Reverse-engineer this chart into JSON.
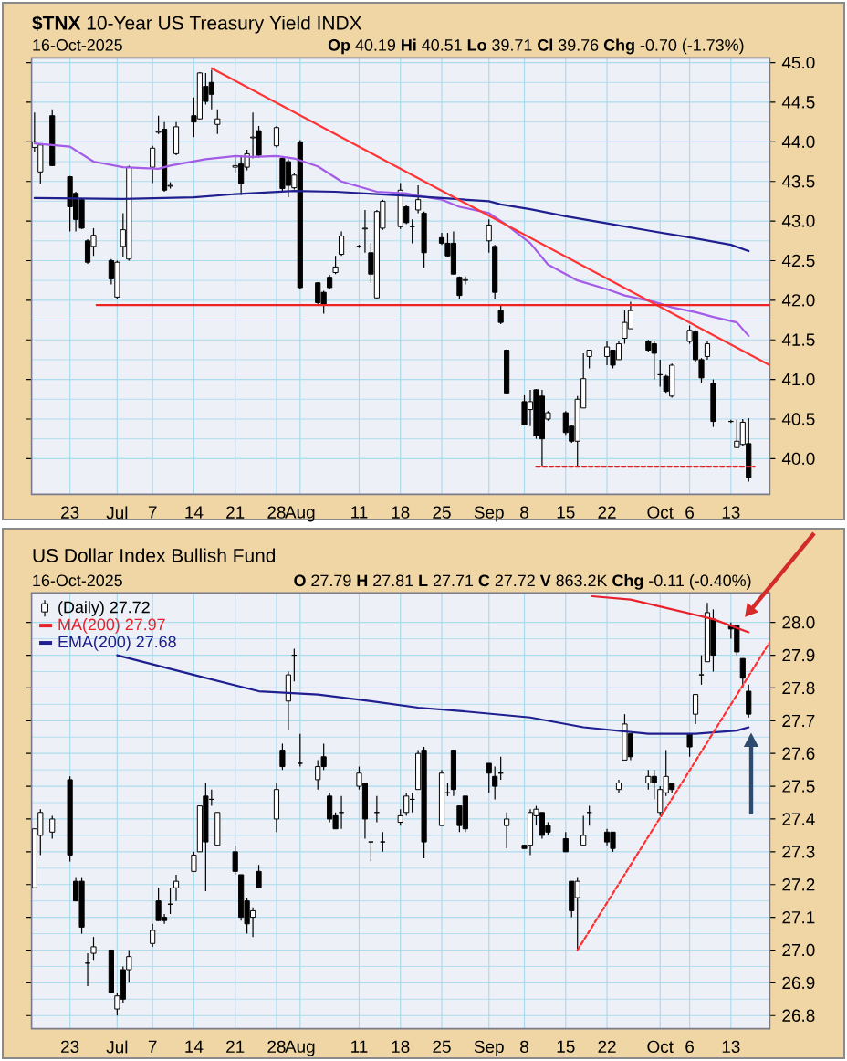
{
  "chart_data": [
    {
      "type": "candlestick",
      "title": "**$TNX** 10-Year US Treasury Yield INDX",
      "subtitle": "16-Oct-2025",
      "annotations": [
        "**Op** 40.19 **Hi** 40.51 **Lo** 39.71 **Cl** 39.76 **Chg** -0.70 (-1.73%)"
      ],
      "series": [
        {
          "x": [
            "2025-06-17",
            "2025-06-18",
            "2025-06-20",
            "2025-06-23",
            "2025-06-24",
            "2025-06-25",
            "2025-06-26",
            "2025-06-27",
            "2025-06-30",
            "2025-07-01",
            "2025-07-02",
            "2025-07-03",
            "2025-07-07",
            "2025-07-08",
            "2025-07-09",
            "2025-07-10",
            "2025-07-11",
            "2025-07-14",
            "2025-07-15",
            "2025-07-16",
            "2025-07-17",
            "2025-07-18",
            "2025-07-21",
            "2025-07-22",
            "2025-07-23",
            "2025-07-24",
            "2025-07-25",
            "2025-07-28",
            "2025-07-29",
            "2025-07-30",
            "2025-07-31",
            "2025-08-01",
            "2025-08-04",
            "2025-08-05",
            "2025-08-06",
            "2025-08-07",
            "2025-08-08",
            "2025-08-11",
            "2025-08-12",
            "2025-08-13",
            "2025-08-14",
            "2025-08-15",
            "2025-08-18",
            "2025-08-19",
            "2025-08-20",
            "2025-08-21",
            "2025-08-22",
            "2025-08-25",
            "2025-08-26",
            "2025-08-27",
            "2025-08-28",
            "2025-08-29",
            "2025-09-02",
            "2025-09-03",
            "2025-09-04",
            "2025-09-05",
            "2025-09-08",
            "2025-09-09",
            "2025-09-10",
            "2025-09-11",
            "2025-09-12",
            "2025-09-15",
            "2025-09-16",
            "2025-09-17",
            "2025-09-18",
            "2025-09-19",
            "2025-09-22",
            "2025-09-23",
            "2025-09-24",
            "2025-09-25",
            "2025-09-26",
            "2025-09-29",
            "2025-09-30",
            "2025-10-01",
            "2025-10-02",
            "2025-10-03",
            "2025-10-06",
            "2025-10-07",
            "2025-10-08",
            "2025-10-09",
            "2025-10-10",
            "2025-10-13",
            "2025-10-14",
            "2025-10-15",
            "2025-10-16"
          ],
          "ohlc": [
            [
              43.93,
              44.37,
              43.87,
              44.0
            ],
            [
              43.62,
              43.98,
              43.47,
              43.96
            ],
            [
              44.33,
              44.41,
              43.7,
              43.7
            ],
            [
              43.56,
              43.57,
              42.87,
              43.18
            ],
            [
              43.35,
              43.37,
              42.87,
              43.02
            ],
            [
              43.27,
              43.29,
              42.9,
              42.91
            ],
            [
              42.75,
              42.77,
              42.46,
              42.48
            ],
            [
              42.68,
              42.91,
              42.56,
              42.82
            ],
            [
              42.5,
              42.52,
              42.2,
              42.27
            ],
            [
              42.04,
              42.5,
              42.02,
              42.48
            ],
            [
              42.68,
              43.1,
              42.55,
              42.89
            ],
            [
              42.52,
              43.7,
              42.5,
              43.68
            ],
            [
              43.68,
              43.95,
              43.48,
              43.92
            ],
            [
              44.12,
              44.33,
              44.1,
              44.13
            ],
            [
              44.16,
              44.25,
              43.37,
              43.39
            ],
            [
              43.44,
              43.49,
              43.41,
              43.45
            ],
            [
              43.85,
              44.25,
              43.83,
              44.19
            ],
            [
              44.33,
              44.56,
              44.06,
              44.25
            ],
            [
              44.29,
              44.88,
              44.28,
              44.87
            ],
            [
              44.7,
              44.87,
              44.47,
              44.51
            ],
            [
              44.75,
              44.91,
              44.41,
              44.6
            ],
            [
              44.22,
              44.41,
              44.1,
              44.29
            ],
            [
              43.68,
              43.83,
              43.6,
              43.7
            ],
            [
              43.72,
              43.83,
              43.33,
              43.47
            ],
            [
              43.68,
              43.9,
              43.64,
              43.85
            ],
            [
              44.05,
              44.37,
              43.79,
              44.06
            ],
            [
              44.14,
              44.2,
              43.8,
              43.83
            ],
            [
              43.95,
              44.2,
              43.93,
              44.18
            ],
            [
              43.79,
              43.82,
              43.38,
              43.41
            ],
            [
              43.75,
              43.78,
              43.3,
              43.45
            ],
            [
              43.42,
              43.6,
              43.4,
              43.58
            ],
            [
              44.0,
              44.02,
              42.14,
              42.16
            ],
            [
              42.22,
              42.23,
              41.95,
              41.97
            ],
            [
              42.1,
              42.12,
              41.83,
              41.95
            ],
            [
              42.29,
              42.32,
              42.14,
              42.16
            ],
            [
              42.35,
              42.56,
              42.33,
              42.42
            ],
            [
              42.58,
              42.87,
              42.56,
              42.81
            ],
            [
              42.68,
              42.7,
              42.66,
              42.68
            ],
            [
              42.9,
              43.14,
              42.6,
              42.91
            ],
            [
              42.6,
              42.72,
              42.22,
              42.33
            ],
            [
              42.03,
              43.14,
              42.01,
              43.12
            ],
            [
              42.91,
              43.27,
              42.89,
              43.25
            ],
            [
              42.93,
              43.48,
              42.9,
              43.39
            ],
            [
              43.18,
              43.2,
              42.96,
              42.98
            ],
            [
              42.93,
              43.02,
              42.72,
              42.93
            ],
            [
              43.14,
              43.45,
              43.1,
              43.27
            ],
            [
              43.1,
              43.12,
              42.41,
              42.6
            ],
            [
              42.79,
              42.85,
              42.7,
              42.72
            ],
            [
              42.72,
              42.85,
              42.55,
              42.56
            ],
            [
              42.72,
              42.87,
              42.33,
              42.33
            ],
            [
              42.29,
              42.3,
              42.02,
              42.06
            ],
            [
              42.25,
              42.3,
              42.2,
              42.26
            ],
            [
              42.75,
              43.02,
              42.6,
              42.95
            ],
            [
              42.68,
              42.7,
              42.02,
              42.1
            ],
            [
              41.87,
              41.95,
              41.7,
              41.72
            ],
            [
              41.37,
              41.38,
              40.82,
              40.83
            ],
            [
              40.72,
              40.8,
              40.42,
              40.43
            ],
            [
              40.62,
              40.87,
              40.41,
              40.72
            ],
            [
              40.87,
              40.88,
              40.25,
              40.29
            ],
            [
              40.79,
              40.87,
              39.91,
              40.25
            ],
            [
              40.5,
              40.6,
              40.48,
              40.58
            ],
            [
              40.58,
              40.6,
              40.3,
              40.33
            ],
            [
              40.41,
              40.43,
              40.2,
              40.22
            ],
            [
              40.22,
              40.79,
              39.91,
              40.75
            ],
            [
              40.64,
              41.33,
              40.64,
              41.01
            ],
            [
              41.29,
              41.37,
              41.14,
              41.37
            ],
            [
              41.29,
              41.48,
              41.18,
              41.41
            ],
            [
              41.37,
              41.37,
              41.14,
              41.18
            ],
            [
              41.25,
              41.48,
              41.25,
              41.45
            ],
            [
              41.52,
              41.87,
              41.45,
              41.72
            ],
            [
              41.64,
              41.98,
              41.64,
              41.87
            ],
            [
              41.48,
              41.5,
              41.35,
              41.37
            ],
            [
              41.45,
              41.48,
              41.0,
              41.33
            ],
            [
              41.06,
              41.25,
              40.91,
              41.06
            ],
            [
              41.04,
              41.06,
              40.83,
              40.85
            ],
            [
              40.79,
              41.2,
              40.77,
              41.18
            ],
            [
              41.48,
              41.68,
              41.45,
              41.62
            ],
            [
              41.6,
              41.62,
              41.22,
              41.25
            ],
            [
              41.25,
              41.27,
              40.95,
              41.02
            ],
            [
              41.29,
              41.48,
              41.25,
              41.45
            ],
            [
              40.95,
              41.0,
              40.4,
              40.47
            ],
            [
              40.47,
              40.49,
              40.45,
              40.47
            ],
            [
              40.14,
              40.49,
              40.14,
              40.22
            ],
            [
              40.18,
              40.5,
              40.16,
              40.46
            ],
            [
              40.19,
              40.51,
              39.71,
              39.76
            ]
          ]
        },
        {
          "type": "line",
          "color": "#a35be8",
          "x": [
            "2025-06-17",
            "2025-06-23",
            "2025-06-27",
            "2025-07-02",
            "2025-07-08",
            "2025-07-10",
            "2025-07-16",
            "2025-07-21",
            "2025-07-24",
            "2025-07-28",
            "2025-07-31",
            "2025-08-04",
            "2025-08-08",
            "2025-08-14",
            "2025-08-19",
            "2025-08-21",
            "2025-08-25",
            "2025-08-28",
            "2025-09-02",
            "2025-09-05",
            "2025-09-09",
            "2025-09-12",
            "2025-09-17",
            "2025-09-22",
            "2025-09-25",
            "2025-09-30",
            "2025-10-03",
            "2025-10-07",
            "2025-10-10",
            "2025-10-14",
            "2025-10-16"
          ],
          "values": [
            43.98,
            43.94,
            43.75,
            43.68,
            43.66,
            43.7,
            43.78,
            43.82,
            43.81,
            43.82,
            43.79,
            43.69,
            43.5,
            43.37,
            43.35,
            43.32,
            43.27,
            43.18,
            43.1,
            42.95,
            42.72,
            42.45,
            42.25,
            42.14,
            42.06,
            41.98,
            41.91,
            41.85,
            41.79,
            41.72,
            41.55
          ]
        },
        {
          "type": "line",
          "color": "#1f1f8f",
          "x": [
            "2025-06-17",
            "2025-07-02",
            "2025-07-14",
            "2025-07-21",
            "2025-07-31",
            "2025-08-07",
            "2025-08-14",
            "2025-08-19",
            "2025-08-25",
            "2025-09-02",
            "2025-09-04",
            "2025-09-09",
            "2025-09-15",
            "2025-09-22",
            "2025-09-29",
            "2025-10-07",
            "2025-10-13",
            "2025-10-16"
          ],
          "values": [
            43.29,
            43.28,
            43.3,
            43.34,
            43.38,
            43.37,
            43.34,
            43.32,
            43.29,
            43.25,
            43.21,
            43.15,
            43.06,
            42.97,
            42.88,
            42.78,
            42.7,
            42.62
          ]
        },
        {
          "type": "line",
          "color": "#ff3333",
          "x": [
            "2025-07-17",
            "2025-10-19T14:00"
          ],
          "values": [
            44.93,
            41.18
          ]
        },
        {
          "type": "line",
          "color": "#ee2222",
          "x": [
            "2025-06-27T12:00",
            "2025-10-19T14:00"
          ],
          "values": [
            41.94,
            41.94
          ]
        },
        {
          "type": "line",
          "color": "#e02020",
          "line_style": "dashed",
          "x": [
            "2025-09-10",
            "2025-10-17"
          ],
          "values": [
            39.9,
            39.9
          ]
        }
      ],
      "xlim": [
        "2025-06-16T12:00",
        "2025-10-19T14:00"
      ],
      "xticks": [
        {
          "value": "2025-06-23",
          "label": "23"
        },
        {
          "value": "2025-07-01",
          "label": "Jul"
        },
        {
          "value": "2025-07-07",
          "label": "7"
        },
        {
          "value": "2025-07-14",
          "label": "14"
        },
        {
          "value": "2025-07-21",
          "label": "21"
        },
        {
          "value": "2025-07-28",
          "label": "28"
        },
        {
          "value": "2025-08-01",
          "label": "Aug"
        },
        {
          "value": "2025-08-11",
          "label": "11"
        },
        {
          "value": "2025-08-18",
          "label": "18"
        },
        {
          "value": "2025-08-25",
          "label": "25"
        },
        {
          "value": "2025-09-02",
          "label": "Sep"
        },
        {
          "value": "2025-09-08",
          "label": "8"
        },
        {
          "value": "2025-09-15",
          "label": "15"
        },
        {
          "value": "2025-09-22",
          "label": "22"
        },
        {
          "value": "2025-10-01",
          "label": "Oct"
        },
        {
          "value": "2025-10-06",
          "label": "6"
        },
        {
          "value": "2025-10-13",
          "label": "13"
        }
      ],
      "ylim": [
        39.55,
        45.06
      ],
      "yticks": [
        {
          "value": 40,
          "label": "40.0"
        },
        40.5,
        {
          "value": 41,
          "label": "41.0"
        },
        41.5,
        {
          "value": 42,
          "label": "42.0"
        },
        42.5,
        {
          "value": 43,
          "label": "43.0"
        },
        43.5,
        {
          "value": 44,
          "label": "44.0"
        },
        44.5,
        {
          "value": 45,
          "label": "45.0"
        }
      ],
      "grid": true
    },
    {
      "type": "candlestick",
      "title": "US Dollar Index Bullish Fund",
      "subtitle": "16-Oct-2025",
      "annotations": [
        "**O** 27.79 **H** 27.81 **L** 27.71 **C** 27.72 **V** 863.2K **Chg** -0.11 (-0.40%)"
      ],
      "series": [
        {
          "name": "(Daily) 27.72",
          "x": [
            "2025-06-17",
            "2025-06-18",
            "2025-06-20",
            "2025-06-23",
            "2025-06-24",
            "2025-06-25",
            "2025-06-26",
            "2025-06-27",
            "2025-06-30",
            "2025-07-01",
            "2025-07-02",
            "2025-07-03",
            "2025-07-07",
            "2025-07-08",
            "2025-07-09",
            "2025-07-10",
            "2025-07-11",
            "2025-07-14",
            "2025-07-15",
            "2025-07-16",
            "2025-07-17",
            "2025-07-18",
            "2025-07-21",
            "2025-07-22",
            "2025-07-23",
            "2025-07-24",
            "2025-07-25",
            "2025-07-28",
            "2025-07-29",
            "2025-07-30",
            "2025-07-31",
            "2025-08-01",
            "2025-08-04",
            "2025-08-05",
            "2025-08-06",
            "2025-08-07",
            "2025-08-08",
            "2025-08-11",
            "2025-08-12",
            "2025-08-13",
            "2025-08-14",
            "2025-08-15",
            "2025-08-18",
            "2025-08-19",
            "2025-08-20",
            "2025-08-21",
            "2025-08-22",
            "2025-08-25",
            "2025-08-26",
            "2025-08-27",
            "2025-08-28",
            "2025-08-29",
            "2025-09-02",
            "2025-09-03",
            "2025-09-04",
            "2025-09-05",
            "2025-09-08",
            "2025-09-09",
            "2025-09-10",
            "2025-09-11",
            "2025-09-12",
            "2025-09-15",
            "2025-09-16",
            "2025-09-17",
            "2025-09-18",
            "2025-09-19",
            "2025-09-22",
            "2025-09-23",
            "2025-09-24",
            "2025-09-25",
            "2025-09-26",
            "2025-09-29",
            "2025-09-30",
            "2025-10-01",
            "2025-10-02",
            "2025-10-03",
            "2025-10-06",
            "2025-10-07",
            "2025-10-08",
            "2025-10-09",
            "2025-10-10",
            "2025-10-13",
            "2025-10-14",
            "2025-10-15",
            "2025-10-16"
          ],
          "ohlc": [
            [
              27.19,
              27.37,
              27.19,
              27.37
            ],
            [
              27.35,
              27.43,
              27.29,
              27.42
            ],
            [
              27.36,
              27.41,
              27.34,
              27.4
            ],
            [
              27.52,
              27.53,
              27.27,
              27.29
            ],
            [
              27.21,
              27.22,
              27.15,
              27.15
            ],
            [
              27.21,
              27.22,
              27.05,
              27.07
            ],
            [
              26.96,
              26.99,
              26.89,
              26.96
            ],
            [
              26.99,
              27.04,
              26.97,
              27.01
            ],
            [
              27.0,
              27.0,
              26.87,
              26.87
            ],
            [
              26.82,
              26.87,
              26.8,
              26.86
            ],
            [
              26.94,
              26.95,
              26.84,
              26.85
            ],
            [
              26.94,
              27.0,
              26.9,
              26.98
            ],
            [
              27.02,
              27.08,
              27.01,
              27.06
            ],
            [
              27.15,
              27.19,
              27.09,
              27.09
            ],
            [
              27.1,
              27.11,
              27.08,
              27.09
            ],
            [
              27.14,
              27.19,
              27.11,
              27.14
            ],
            [
              27.19,
              27.23,
              27.15,
              27.21
            ],
            [
              27.24,
              27.3,
              27.24,
              27.29
            ],
            [
              27.3,
              27.44,
              27.3,
              27.44
            ],
            [
              27.47,
              27.51,
              27.18,
              27.33
            ],
            [
              27.46,
              27.49,
              27.44,
              27.46
            ],
            [
              27.32,
              27.42,
              27.32,
              27.42
            ],
            [
              27.3,
              27.32,
              27.23,
              27.24
            ],
            [
              27.23,
              27.23,
              27.09,
              27.1
            ],
            [
              27.15,
              27.16,
              27.05,
              27.08
            ],
            [
              27.1,
              27.13,
              27.04,
              27.12
            ],
            [
              27.24,
              27.26,
              27.19,
              27.19
            ],
            [
              27.4,
              27.51,
              27.36,
              27.49
            ],
            [
              27.61,
              27.63,
              27.55,
              27.56
            ],
            [
              27.76,
              27.85,
              27.67,
              27.84
            ],
            [
              27.9,
              27.92,
              27.82,
              27.9
            ],
            [
              27.57,
              27.66,
              27.56,
              27.57
            ],
            [
              27.52,
              27.58,
              27.49,
              27.56
            ],
            [
              27.59,
              27.63,
              27.55,
              27.56
            ],
            [
              27.47,
              27.48,
              27.39,
              27.4
            ],
            [
              27.41,
              27.42,
              27.37,
              27.37
            ],
            [
              27.42,
              27.47,
              27.37,
              27.42
            ],
            [
              27.5,
              27.56,
              27.49,
              27.54
            ],
            [
              27.51,
              27.51,
              27.34,
              27.4
            ],
            [
              27.33,
              27.33,
              27.27,
              27.33
            ],
            [
              27.42,
              27.47,
              27.39,
              27.42
            ],
            [
              27.33,
              27.36,
              27.3,
              27.33
            ],
            [
              27.39,
              27.43,
              27.38,
              27.41
            ],
            [
              27.42,
              27.48,
              27.41,
              27.47
            ],
            [
              27.46,
              27.48,
              27.42,
              27.46
            ],
            [
              27.49,
              27.61,
              27.49,
              27.6
            ],
            [
              27.61,
              27.62,
              27.28,
              27.33
            ],
            [
              27.38,
              27.55,
              27.38,
              27.54
            ],
            [
              27.48,
              27.51,
              27.47,
              27.48
            ],
            [
              27.61,
              27.61,
              27.47,
              27.49
            ],
            [
              27.44,
              27.44,
              27.36,
              27.38
            ],
            [
              27.47,
              27.47,
              27.36,
              27.37
            ],
            [
              27.57,
              27.57,
              27.48,
              27.54
            ],
            [
              27.53,
              27.56,
              27.46,
              27.5
            ],
            [
              27.54,
              27.59,
              27.52,
              27.54
            ],
            [
              27.38,
              27.42,
              27.31,
              27.4
            ],
            [
              27.32,
              27.32,
              27.31,
              27.31
            ],
            [
              27.32,
              27.43,
              27.29,
              27.42
            ],
            [
              27.41,
              27.44,
              27.38,
              27.43
            ],
            [
              27.42,
              27.42,
              27.34,
              27.35
            ],
            [
              27.38,
              27.39,
              27.35,
              27.36
            ],
            [
              27.34,
              27.36,
              27.3,
              27.3
            ],
            [
              27.21,
              27.21,
              27.1,
              27.12
            ],
            [
              27.16,
              27.22,
              27.0,
              27.21
            ],
            [
              27.32,
              27.41,
              27.32,
              27.35
            ],
            [
              27.42,
              27.44,
              27.38,
              27.42
            ],
            [
              27.36,
              27.37,
              27.32,
              27.33
            ],
            [
              27.36,
              27.36,
              27.3,
              27.31
            ],
            [
              27.49,
              27.52,
              27.48,
              27.51
            ],
            [
              27.58,
              27.72,
              27.58,
              27.69
            ],
            [
              27.66,
              27.66,
              27.58,
              27.59
            ],
            [
              27.51,
              27.55,
              27.49,
              27.53
            ],
            [
              27.53,
              27.55,
              27.46,
              27.51
            ],
            [
              27.42,
              27.5,
              27.41,
              27.49
            ],
            [
              27.48,
              27.61,
              27.47,
              27.53
            ],
            [
              27.51,
              27.51,
              27.48,
              27.49
            ],
            [
              27.66,
              27.66,
              27.59,
              27.62
            ],
            [
              27.72,
              27.78,
              27.69,
              27.78
            ],
            [
              27.84,
              27.9,
              27.81,
              27.84
            ],
            [
              27.88,
              28.06,
              27.88,
              28.03
            ],
            [
              28.01,
              28.04,
              27.85,
              27.9
            ],
            [
              27.99,
              28.0,
              27.95,
              27.98
            ],
            [
              27.99,
              27.99,
              27.9,
              27.91
            ],
            [
              27.89,
              27.89,
              27.8,
              27.83
            ],
            [
              27.79,
              27.81,
              27.71,
              27.72
            ]
          ]
        },
        {
          "type": "line",
          "name": "MA(200) 27.97",
          "color": "#e8202a",
          "x": [
            "2025-09-19T12:00",
            "2025-09-26",
            "2025-10-03",
            "2025-10-10",
            "2025-10-16"
          ],
          "values": [
            28.08,
            28.07,
            28.04,
            28.01,
            27.97
          ]
        },
        {
          "type": "line",
          "name": "EMA(200) 27.68",
          "color": "#1f1f8f",
          "x": [
            "2025-07-01",
            "2025-07-14",
            "2025-07-25",
            "2025-08-04",
            "2025-08-13",
            "2025-08-21",
            "2025-08-28",
            "2025-09-09",
            "2025-09-18",
            "2025-09-29",
            "2025-10-07",
            "2025-10-14",
            "2025-10-16"
          ],
          "values": [
            27.9,
            27.84,
            27.79,
            27.78,
            27.76,
            27.74,
            27.73,
            27.71,
            27.68,
            27.66,
            27.66,
            27.67,
            27.68
          ]
        },
        {
          "type": "line",
          "color": "#ff3030",
          "line_style": "dashed",
          "x": [
            "2025-09-17",
            "2025-10-19T14:00"
          ],
          "values": [
            27.0,
            27.94
          ]
        }
      ],
      "xlim": [
        "2025-06-16T12:00",
        "2025-10-19T14:00"
      ],
      "xticks": [
        {
          "value": "2025-06-23",
          "label": "23"
        },
        {
          "value": "2025-07-01",
          "label": "Jul"
        },
        {
          "value": "2025-07-07",
          "label": "7"
        },
        {
          "value": "2025-07-14",
          "label": "14"
        },
        {
          "value": "2025-07-21",
          "label": "21"
        },
        {
          "value": "2025-07-28",
          "label": "28"
        },
        {
          "value": "2025-08-01",
          "label": "Aug"
        },
        {
          "value": "2025-08-11",
          "label": "11"
        },
        {
          "value": "2025-08-18",
          "label": "18"
        },
        {
          "value": "2025-08-25",
          "label": "25"
        },
        {
          "value": "2025-09-02",
          "label": "Sep"
        },
        {
          "value": "2025-09-08",
          "label": "8"
        },
        {
          "value": "2025-09-15",
          "label": "15"
        },
        {
          "value": "2025-09-22",
          "label": "22"
        },
        {
          "value": "2025-10-01",
          "label": "Oct"
        },
        {
          "value": "2025-10-06",
          "label": "6"
        },
        {
          "value": "2025-10-13",
          "label": "13"
        }
      ],
      "ylim": [
        26.76,
        28.09
      ],
      "yticks": [
        26.8,
        26.9,
        {
          "value": 27,
          "label": "27.0"
        },
        27.1,
        27.2,
        27.3,
        27.4,
        27.5,
        27.6,
        27.7,
        27.8,
        27.9,
        {
          "value": 28,
          "label": "28.0"
        }
      ],
      "grid": true,
      "legend": "top left"
    }
  ]
}
